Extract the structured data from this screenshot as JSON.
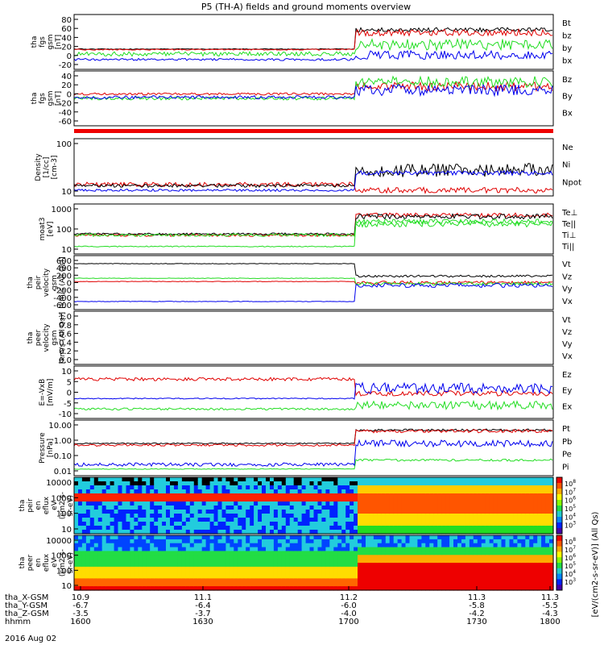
{
  "title": "P5 (TH-A) fields and ground moments overview",
  "date_label": "2016 Aug 02",
  "colors": {
    "black": "#000000",
    "red": "#e00000",
    "green": "#22dd22",
    "blue": "#0000ee"
  },
  "ephemeris": {
    "rows": [
      "tha_X-GSM",
      "tha_Y-GSM",
      "tha_Z-GSM",
      "hhmm"
    ],
    "ticks": [
      [
        "10.9",
        "11.1",
        "11.2",
        "11.3",
        "11.3"
      ],
      [
        "-6.7",
        "-6.4",
        "-6.0",
        "-5.8",
        "-5.5"
      ],
      [
        "-3.5",
        "-3.7",
        "-4.0",
        "-4.2",
        "-4.3"
      ],
      [
        "1600",
        "1630",
        "1700",
        "1730",
        "1800"
      ]
    ]
  },
  "chart_data": [
    {
      "type": "line",
      "ylabel": [
        "tha",
        "fgs",
        "gsm",
        "[nT]"
      ],
      "yticks": [
        "80",
        "60",
        "40",
        "20",
        "0",
        "-20"
      ],
      "series": [
        {
          "name": "Bt",
          "color": "black"
        },
        {
          "name": "bz",
          "color": "red"
        },
        {
          "name": "by",
          "color": "green"
        },
        {
          "name": "bx",
          "color": "blue"
        }
      ]
    },
    {
      "type": "line",
      "ylabel": [
        "tha",
        "fgs",
        "gsm",
        "[nT]"
      ],
      "yticks": [
        "40",
        "20",
        "0",
        "-20",
        "-40",
        "-60"
      ],
      "series": [
        {
          "name": "Bz",
          "color": "red"
        },
        {
          "name": "By",
          "color": "green"
        },
        {
          "name": "Bx",
          "color": "blue"
        }
      ]
    },
    {
      "type": "line",
      "ylabel": [
        "Density",
        "[1/cc]",
        "[cm-3]"
      ],
      "yticks": [
        "100",
        "10"
      ],
      "ylog": true,
      "series": [
        {
          "name": "Ne",
          "color": "red"
        },
        {
          "name": "Ni",
          "color": "black"
        },
        {
          "name": "Npot",
          "color": "blue"
        }
      ]
    },
    {
      "type": "line",
      "ylabel": [
        "moat3",
        "[eV]"
      ],
      "yticks": [
        "1000",
        "100",
        "10"
      ],
      "ylog": true,
      "series": [
        {
          "name": "Te⊥",
          "color": "red"
        },
        {
          "name": "Te||",
          "color": "black"
        },
        {
          "name": "Ti⊥",
          "color": "green"
        },
        {
          "name": "Ti||",
          "color": "green"
        }
      ]
    },
    {
      "type": "line",
      "ylabel": [
        "tha",
        "peir",
        "velocity",
        "gsm",
        "[km/s (All Qs)]"
      ],
      "yticks": [
        "600",
        "400",
        "200",
        "0",
        "-200",
        "-400",
        "-600"
      ],
      "series": [
        {
          "name": "Vt",
          "color": "black"
        },
        {
          "name": "Vz",
          "color": "red"
        },
        {
          "name": "Vy",
          "color": "green"
        },
        {
          "name": "Vx",
          "color": "blue"
        }
      ]
    },
    {
      "type": "line",
      "ylabel": [
        "tha",
        "peer",
        "velocity",
        "gsm",
        "[km/s (All Qs)]"
      ],
      "yticks": [
        "1.0",
        "0.8",
        "0.6",
        "0.4",
        "0.2",
        "0.0"
      ],
      "series": [
        {
          "name": "Vt",
          "color": "black"
        },
        {
          "name": "Vz",
          "color": "red"
        },
        {
          "name": "Vy",
          "color": "green"
        },
        {
          "name": "Vx",
          "color": "blue"
        }
      ]
    },
    {
      "type": "line",
      "ylabel": [
        "E=-VxB",
        "[mV/m]"
      ],
      "yticks": [
        "10",
        "5",
        "0",
        "-5",
        "-10"
      ],
      "series": [
        {
          "name": "Ez",
          "color": "red"
        },
        {
          "name": "Ey",
          "color": "green"
        },
        {
          "name": "Ex",
          "color": "blue"
        }
      ]
    },
    {
      "type": "line",
      "ylabel": [
        "Pressure",
        "[nPa]"
      ],
      "yticks": [
        "10.00",
        "1.00",
        "0.10",
        "0.01"
      ],
      "ylog": true,
      "series": [
        {
          "name": "Pt",
          "color": "black"
        },
        {
          "name": "Pb",
          "color": "red"
        },
        {
          "name": "Pe",
          "color": "green"
        },
        {
          "name": "Pi",
          "color": "blue"
        }
      ]
    },
    {
      "type": "heatmap",
      "ylabel": [
        "tha",
        "peir",
        "en",
        "eflux",
        "eV",
        "(cm2-s-",
        "sr-eV)"
      ],
      "yticks": [
        "10000",
        "1000",
        "100",
        "10"
      ],
      "ylog": true
    },
    {
      "type": "heatmap",
      "ylabel": [
        "tha",
        "peer",
        "en",
        "eflux",
        "eV",
        "(cm2-s-",
        "sr-eV)"
      ],
      "yticks": [
        "10000",
        "1000",
        "100",
        "10"
      ],
      "ylog": true
    }
  ],
  "colorbar": {
    "exponents_top": [
      "8",
      "7",
      "6",
      "5",
      "4",
      "3"
    ],
    "exponents_bottom": [
      "8",
      "7",
      "6",
      "5",
      "4",
      "3"
    ],
    "label": "[eV/(cm2-s-sr-eV)] (All Qs)"
  }
}
